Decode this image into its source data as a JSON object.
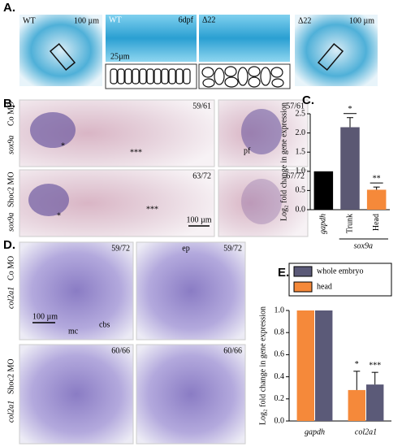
{
  "panel_labels": [
    "A.",
    "B.",
    "C.",
    "D.",
    "E."
  ],
  "panel_a": {
    "left": {
      "genotype": "WT",
      "scale": "100 µm"
    },
    "middle_wt": {
      "genotype": "WT",
      "stage": "6dpf",
      "scale": "25µm"
    },
    "middle_mut": {
      "genotype": "Δ22"
    },
    "right": {
      "genotype": "Δ22",
      "scale": "100 µm"
    }
  },
  "panel_b": {
    "rows": [
      {
        "probe": "sox9a",
        "treatment": "Co MO",
        "counts": [
          "59/61",
          "57/61"
        ],
        "marks": [
          "*",
          "***"
        ]
      },
      {
        "probe": "sox9a",
        "treatment": "Shoc2 MO",
        "counts": [
          "63/72",
          "67/72"
        ],
        "marks": [
          "*",
          "***"
        ]
      }
    ],
    "pf": "pf",
    "scale": "100 µm"
  },
  "panel_d": {
    "rows": [
      {
        "probe": "col2a1",
        "treatment": "Co MO",
        "counts": [
          "59/72",
          "59/72"
        ]
      },
      {
        "probe": "col2a1",
        "treatment": "Shoc2 MO",
        "counts": [
          "60/66",
          "60/66"
        ]
      }
    ],
    "scale": "100 µm",
    "mc": "mc",
    "cbs": "cbs",
    "ep": "ep"
  },
  "chart_data": [
    {
      "type": "bar",
      "ylabel": "Log₂ fold change in gene expression",
      "categories": [
        "gapdh",
        "Trunk",
        "Head"
      ],
      "group_label": "sox9a",
      "values": [
        1.0,
        2.15,
        0.52
      ],
      "errors": [
        0,
        0.25,
        0.07
      ],
      "value_annotations": [
        null,
        "*",
        "**"
      ],
      "colors": [
        "#000000",
        "#5b5873",
        "#f5893a"
      ],
      "ylim": [
        0,
        2.5
      ],
      "yticks": [
        {
          "value": 0,
          "label": "0.0"
        },
        {
          "value": 0.5,
          "label": "0.5"
        },
        {
          "value": 1,
          "label": "1.0"
        },
        {
          "value": 1.5,
          "label": "1.5"
        },
        {
          "value": 2,
          "label": "2.0"
        },
        {
          "value": 2.5,
          "label": "2.5"
        }
      ]
    },
    {
      "type": "grouped_bar",
      "ylabel": "Log₂ fold change in gene expression",
      "categories": [
        "gapdh",
        "col2a1"
      ],
      "series": [
        {
          "name": "whole embryo",
          "color": "#5b5a78",
          "values": [
            1.0,
            0.33
          ],
          "errors": [
            0,
            0.11
          ],
          "value_annotations": [
            null,
            "***"
          ]
        },
        {
          "name": "head",
          "color": "#f5893a",
          "values": [
            1.0,
            0.28
          ],
          "errors": [
            0,
            0.17
          ],
          "value_annotations": [
            null,
            "*"
          ]
        }
      ],
      "ylim": [
        0,
        1
      ],
      "yticks": [
        {
          "value": 0,
          "label": "0.0"
        },
        {
          "value": 0.2,
          "label": "0.2"
        },
        {
          "value": 0.4,
          "label": "0.4"
        },
        {
          "value": 0.6,
          "label": "0.6"
        },
        {
          "value": 0.8,
          "label": "0.8"
        },
        {
          "value": 1,
          "label": "1.0"
        }
      ]
    }
  ]
}
